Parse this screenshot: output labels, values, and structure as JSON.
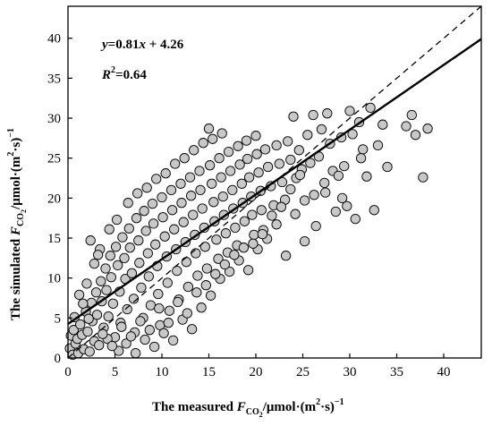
{
  "chart_data": {
    "type": "scatter",
    "title": "",
    "xlabel": {
      "prefix": "The measured ",
      "var": "F",
      "sub": "CO",
      "subsub": "2",
      "suffix": "/μmol·(m",
      "sup": "2",
      "suffix2": "·s)",
      "sup2": "−1"
    },
    "ylabel": {
      "prefix": "The simulated ",
      "var": "F",
      "sub": "CO",
      "subsub": "2",
      "suffix": "/μmol·(m",
      "sup": "2",
      "suffix2": "·s)",
      "sup2": "−1"
    },
    "xlim": [
      0,
      44
    ],
    "ylim": [
      0,
      44
    ],
    "xticks": [
      0,
      5,
      10,
      15,
      20,
      25,
      30,
      35,
      40
    ],
    "yticks": [
      0,
      5,
      10,
      15,
      20,
      25,
      30,
      35,
      40
    ],
    "grid": false,
    "annotations": {
      "equation": {
        "y": "y",
        "eq": "=0.81",
        "x": "x",
        "rest": " + 4.26"
      },
      "r2": {
        "R": "R",
        "sup": "2",
        "rest": "=0.64"
      }
    },
    "regression_line": {
      "slope": 0.81,
      "intercept": 4.26,
      "style": "solid"
    },
    "identity_line": {
      "slope": 1,
      "intercept": 0,
      "style": "dashed"
    },
    "marker": {
      "fill": "#c8c8c8",
      "stroke": "#000000"
    },
    "series": [
      {
        "points": [
          [
            0.2,
            1.2
          ],
          [
            0.3,
            2.8
          ],
          [
            0.5,
            0.4
          ],
          [
            0.6,
            3.5
          ],
          [
            0.8,
            1.8
          ],
          [
            1.0,
            2.4
          ],
          [
            1.1,
            0.6
          ],
          [
            1.3,
            4.2
          ],
          [
            1.5,
            2.9
          ],
          [
            1.7,
            1.1
          ],
          [
            1.9,
            5.8
          ],
          [
            2.1,
            3.3
          ],
          [
            2.3,
            0.8
          ],
          [
            2.5,
            6.9
          ],
          [
            2.6,
            4.6
          ],
          [
            2.8,
            2.1
          ],
          [
            3.0,
            8.2
          ],
          [
            3.1,
            5.4
          ],
          [
            3.3,
            1.6
          ],
          [
            3.5,
            9.6
          ],
          [
            3.6,
            7.1
          ],
          [
            3.8,
            3.8
          ],
          [
            4.0,
            11.2
          ],
          [
            4.1,
            8.5
          ],
          [
            4.3,
            5.2
          ],
          [
            4.5,
            12.8
          ],
          [
            4.6,
            10.1
          ],
          [
            4.8,
            6.8
          ],
          [
            5.0,
            2.6
          ],
          [
            5.1,
            13.9
          ],
          [
            5.3,
            11.6
          ],
          [
            5.5,
            8.3
          ],
          [
            5.6,
            4.4
          ],
          [
            5.8,
            15.1
          ],
          [
            6.0,
            12.5
          ],
          [
            6.1,
            9.9
          ],
          [
            6.3,
            6.1
          ],
          [
            6.5,
            16.2
          ],
          [
            6.6,
            13.8
          ],
          [
            6.8,
            10.6
          ],
          [
            7.0,
            7.4
          ],
          [
            7.1,
            3.2
          ],
          [
            7.3,
            17.5
          ],
          [
            7.5,
            14.7
          ],
          [
            7.6,
            11.9
          ],
          [
            7.8,
            8.8
          ],
          [
            8.0,
            5.0
          ],
          [
            8.1,
            18.4
          ],
          [
            8.3,
            15.9
          ],
          [
            8.5,
            13.1
          ],
          [
            8.6,
            10.2
          ],
          [
            8.8,
            6.6
          ],
          [
            9.0,
            19.3
          ],
          [
            9.1,
            16.8
          ],
          [
            9.3,
            14.2
          ],
          [
            9.5,
            11.5
          ],
          [
            9.6,
            8.0
          ],
          [
            9.8,
            4.1
          ],
          [
            10.0,
            20.1
          ],
          [
            10.1,
            17.6
          ],
          [
            10.3,
            15.2
          ],
          [
            10.5,
            12.7
          ],
          [
            10.6,
            9.4
          ],
          [
            10.8,
            5.9
          ],
          [
            11.0,
            21.0
          ],
          [
            11.1,
            18.5
          ],
          [
            11.3,
            16.1
          ],
          [
            11.5,
            13.6
          ],
          [
            11.6,
            10.9
          ],
          [
            11.8,
            7.3
          ],
          [
            12.0,
            21.8
          ],
          [
            12.1,
            19.4
          ],
          [
            12.3,
            17.0
          ],
          [
            12.5,
            14.5
          ],
          [
            12.6,
            12.0
          ],
          [
            12.8,
            8.9
          ],
          [
            13.0,
            22.6
          ],
          [
            13.1,
            20.3
          ],
          [
            13.3,
            17.9
          ],
          [
            13.5,
            15.4
          ],
          [
            13.6,
            13.1
          ],
          [
            13.8,
            10.3
          ],
          [
            14.0,
            23.4
          ],
          [
            14.1,
            21.0
          ],
          [
            14.3,
            18.7
          ],
          [
            14.5,
            16.3
          ],
          [
            14.6,
            13.9
          ],
          [
            14.8,
            11.2
          ],
          [
            15.0,
            28.7
          ],
          [
            15.1,
            24.1
          ],
          [
            15.3,
            21.8
          ],
          [
            15.5,
            19.5
          ],
          [
            15.6,
            17.1
          ],
          [
            15.8,
            14.8
          ],
          [
            16.0,
            12.4
          ],
          [
            16.1,
            25.0
          ],
          [
            16.3,
            22.6
          ],
          [
            16.5,
            20.2
          ],
          [
            16.6,
            17.9
          ],
          [
            16.8,
            15.6
          ],
          [
            17.0,
            13.2
          ],
          [
            17.1,
            25.8
          ],
          [
            17.3,
            23.4
          ],
          [
            17.5,
            21.0
          ],
          [
            17.6,
            18.7
          ],
          [
            17.8,
            16.3
          ],
          [
            18.0,
            14.1
          ],
          [
            18.1,
            26.5
          ],
          [
            18.3,
            24.2
          ],
          [
            18.5,
            21.8
          ],
          [
            18.6,
            19.4
          ],
          [
            18.8,
            17.1
          ],
          [
            19.0,
            27.2
          ],
          [
            19.1,
            24.9
          ],
          [
            19.3,
            22.6
          ],
          [
            19.5,
            20.2
          ],
          [
            19.6,
            17.9
          ],
          [
            19.8,
            15.4
          ],
          [
            20.0,
            27.8
          ],
          [
            20.1,
            25.5
          ],
          [
            20.3,
            23.2
          ],
          [
            20.5,
            20.9
          ],
          [
            20.6,
            18.5
          ],
          [
            20.8,
            16.0
          ],
          [
            21.0,
            26.1
          ],
          [
            21.3,
            23.9
          ],
          [
            21.6,
            21.5
          ],
          [
            21.9,
            19.1
          ],
          [
            22.2,
            26.6
          ],
          [
            22.5,
            24.3
          ],
          [
            22.8,
            22.0
          ],
          [
            23.1,
            19.8
          ],
          [
            23.4,
            27.1
          ],
          [
            23.7,
            24.8
          ],
          [
            24.0,
            30.2
          ],
          [
            24.3,
            22.5
          ],
          [
            24.6,
            26.0
          ],
          [
            24.9,
            23.6
          ],
          [
            25.2,
            19.7
          ],
          [
            25.5,
            27.9
          ],
          [
            25.8,
            24.4
          ],
          [
            26.1,
            30.4
          ],
          [
            26.4,
            16.5
          ],
          [
            26.7,
            25.2
          ],
          [
            27.0,
            28.6
          ],
          [
            27.3,
            21.9
          ],
          [
            27.6,
            30.6
          ],
          [
            27.9,
            26.8
          ],
          [
            28.2,
            23.4
          ],
          [
            28.5,
            18.3
          ],
          [
            28.8,
            22.8
          ],
          [
            29.1,
            27.6
          ],
          [
            29.4,
            24.0
          ],
          [
            29.7,
            19.0
          ],
          [
            30.0,
            30.9
          ],
          [
            30.3,
            28.0
          ],
          [
            30.6,
            17.4
          ],
          [
            31.0,
            29.5
          ],
          [
            31.4,
            26.1
          ],
          [
            31.8,
            22.7
          ],
          [
            32.2,
            31.3
          ],
          [
            32.6,
            18.5
          ],
          [
            33.0,
            26.6
          ],
          [
            33.5,
            29.2
          ],
          [
            34.0,
            23.9
          ],
          [
            36.0,
            29.0
          ],
          [
            36.6,
            30.4
          ],
          [
            37.0,
            27.9
          ],
          [
            37.8,
            22.6
          ],
          [
            38.3,
            28.7
          ],
          [
            1.2,
            7.9
          ],
          [
            2.0,
            9.3
          ],
          [
            2.8,
            11.8
          ],
          [
            3.4,
            13.6
          ],
          [
            4.2,
            2.4
          ],
          [
            5.4,
            0.9
          ],
          [
            6.2,
            1.8
          ],
          [
            7.2,
            0.6
          ],
          [
            8.2,
            2.3
          ],
          [
            9.2,
            1.4
          ],
          [
            10.2,
            3.1
          ],
          [
            11.2,
            2.2
          ],
          [
            12.2,
            4.8
          ],
          [
            13.2,
            3.6
          ],
          [
            14.2,
            6.3
          ],
          [
            15.2,
            7.8
          ],
          [
            16.2,
            9.9
          ],
          [
            17.2,
            10.8
          ],
          [
            18.2,
            12.2
          ],
          [
            19.2,
            11.0
          ],
          [
            20.2,
            13.6
          ],
          [
            21.2,
            14.9
          ],
          [
            22.2,
            16.7
          ],
          [
            23.2,
            12.8
          ],
          [
            24.2,
            18.0
          ],
          [
            25.2,
            14.6
          ],
          [
            26.2,
            20.4
          ],
          [
            2.4,
            14.7
          ],
          [
            3.2,
            12.9
          ],
          [
            4.4,
            16.1
          ],
          [
            5.2,
            17.3
          ],
          [
            6.4,
            19.4
          ],
          [
            7.4,
            20.6
          ],
          [
            8.4,
            21.3
          ],
          [
            9.4,
            22.4
          ],
          [
            10.4,
            23.1
          ],
          [
            11.4,
            24.3
          ],
          [
            12.4,
            25.0
          ],
          [
            13.4,
            26.0
          ],
          [
            14.4,
            26.9
          ],
          [
            15.4,
            27.4
          ],
          [
            16.4,
            28.1
          ],
          [
            0.7,
            5.1
          ],
          [
            1.6,
            6.8
          ],
          [
            2.2,
            4.9
          ],
          [
            3.7,
            3.0
          ],
          [
            4.7,
            1.5
          ],
          [
            5.7,
            3.9
          ],
          [
            6.7,
            2.7
          ],
          [
            7.7,
            4.6
          ],
          [
            8.7,
            3.5
          ],
          [
            9.7,
            6.2
          ],
          [
            10.7,
            4.4
          ],
          [
            11.7,
            7.0
          ],
          [
            12.7,
            5.6
          ],
          [
            13.7,
            8.2
          ],
          [
            14.7,
            9.1
          ],
          [
            15.7,
            10.5
          ],
          [
            16.7,
            11.7
          ],
          [
            17.7,
            12.9
          ],
          [
            18.7,
            13.8
          ],
          [
            19.7,
            14.3
          ],
          [
            20.7,
            15.5
          ],
          [
            21.7,
            17.8
          ],
          [
            22.7,
            18.9
          ],
          [
            23.7,
            21.1
          ],
          [
            24.7,
            22.9
          ],
          [
            27.4,
            20.7
          ],
          [
            29.2,
            20.0
          ],
          [
            31.2,
            25.0
          ]
        ]
      }
    ]
  }
}
